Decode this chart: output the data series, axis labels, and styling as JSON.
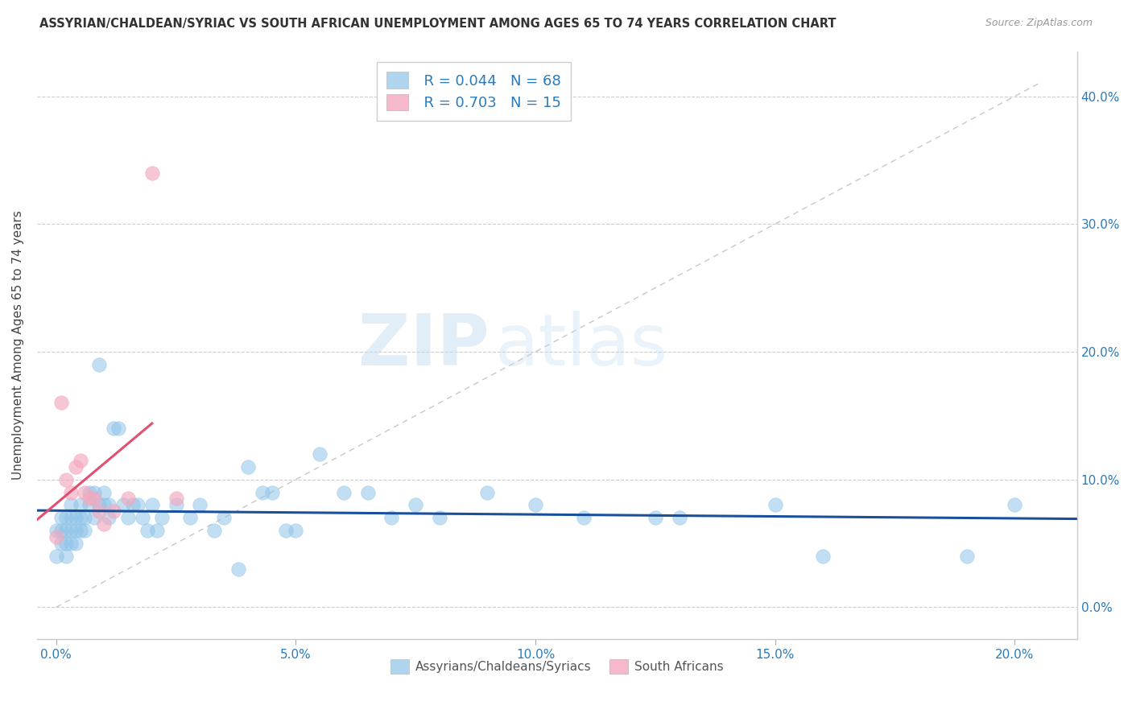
{
  "title": "ASSYRIAN/CHALDEAN/SYRIAC VS SOUTH AFRICAN UNEMPLOYMENT AMONG AGES 65 TO 74 YEARS CORRELATION CHART",
  "source": "Source: ZipAtlas.com",
  "xlabel_ticks": [
    0.0,
    0.05,
    0.1,
    0.15,
    0.2
  ],
  "ylabel_ticks": [
    0.0,
    0.1,
    0.2,
    0.3,
    0.4
  ],
  "xlim": [
    -0.004,
    0.213
  ],
  "ylim": [
    -0.025,
    0.435
  ],
  "ylabel": "Unemployment Among Ages 65 to 74 years",
  "legend_r1": "R = 0.044",
  "legend_n1": "N = 68",
  "legend_r2": "R = 0.703",
  "legend_n2": "N = 15",
  "blue_color": "#8ec4e8",
  "pink_color": "#f4a8be",
  "line_blue": "#1a4f9c",
  "line_pink": "#e05070",
  "diag_color": "#c8c8c8",
  "watermark_zip": "ZIP",
  "watermark_atlas": "atlas",
  "label1": "Assyrians/Chaldeans/Syriacs",
  "label2": "South Africans",
  "blue_x": [
    0.0,
    0.0,
    0.001,
    0.001,
    0.001,
    0.002,
    0.002,
    0.002,
    0.002,
    0.003,
    0.003,
    0.003,
    0.003,
    0.004,
    0.004,
    0.004,
    0.005,
    0.005,
    0.005,
    0.006,
    0.006,
    0.007,
    0.007,
    0.008,
    0.008,
    0.009,
    0.009,
    0.01,
    0.01,
    0.011,
    0.011,
    0.012,
    0.013,
    0.014,
    0.015,
    0.016,
    0.017,
    0.018,
    0.019,
    0.02,
    0.021,
    0.022,
    0.025,
    0.028,
    0.03,
    0.033,
    0.035,
    0.038,
    0.04,
    0.043,
    0.045,
    0.048,
    0.05,
    0.055,
    0.06,
    0.065,
    0.07,
    0.075,
    0.08,
    0.09,
    0.1,
    0.11,
    0.125,
    0.13,
    0.15,
    0.16,
    0.19,
    0.2
  ],
  "blue_y": [
    0.06,
    0.04,
    0.07,
    0.05,
    0.06,
    0.05,
    0.04,
    0.06,
    0.07,
    0.05,
    0.06,
    0.07,
    0.08,
    0.05,
    0.06,
    0.07,
    0.06,
    0.07,
    0.08,
    0.06,
    0.07,
    0.08,
    0.09,
    0.07,
    0.09,
    0.08,
    0.19,
    0.08,
    0.09,
    0.07,
    0.08,
    0.14,
    0.14,
    0.08,
    0.07,
    0.08,
    0.08,
    0.07,
    0.06,
    0.08,
    0.06,
    0.07,
    0.08,
    0.07,
    0.08,
    0.06,
    0.07,
    0.03,
    0.11,
    0.09,
    0.09,
    0.06,
    0.06,
    0.12,
    0.09,
    0.09,
    0.07,
    0.08,
    0.07,
    0.09,
    0.08,
    0.07,
    0.07,
    0.07,
    0.08,
    0.04,
    0.04,
    0.08
  ],
  "pink_x": [
    0.0,
    0.001,
    0.002,
    0.003,
    0.004,
    0.005,
    0.006,
    0.007,
    0.008,
    0.009,
    0.01,
    0.012,
    0.015,
    0.02,
    0.025
  ],
  "pink_y": [
    0.055,
    0.16,
    0.1,
    0.09,
    0.11,
    0.115,
    0.09,
    0.085,
    0.085,
    0.075,
    0.065,
    0.075,
    0.085,
    0.34,
    0.085
  ]
}
